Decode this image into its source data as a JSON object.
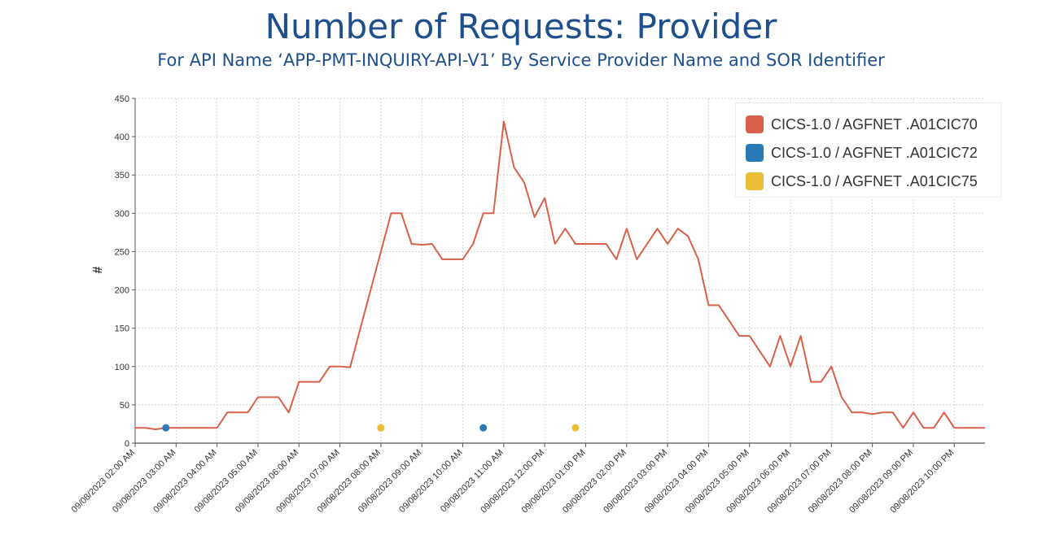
{
  "chart_data": {
    "type": "line",
    "title": "Number of Requests: Provider",
    "subtitle": "For API Name ‘APP-PMT-INQUIRY-API-V1’ By Service Provider Name and SOR Identifier",
    "xlabel": "",
    "ylabel": "#",
    "ylim": [
      0,
      450
    ],
    "yticks": [
      0,
      50,
      100,
      150,
      200,
      250,
      300,
      350,
      400,
      450
    ],
    "xlim": [
      "09/08/2023 02:00 AM",
      "09/08/2023 10:45 PM"
    ],
    "xticks": [
      "09/08/2023 02:00 AM",
      "09/08/2023 03:00 AM",
      "09/08/2023 04:00 AM",
      "09/08/2023 05:00 AM",
      "09/08/2023 06:00 AM",
      "09/08/2023 07:00 AM",
      "09/08/2023 08:00 AM",
      "09/08/2023 09:00 AM",
      "09/08/2023 10:00 AM",
      "09/08/2023 11:00 AM",
      "09/08/2023 12:00 PM",
      "09/08/2023 01:00 PM",
      "09/08/2023 02:00 PM",
      "09/08/2023 03:00 PM",
      "09/08/2023 04:00 PM",
      "09/08/2023 05:00 PM",
      "09/08/2023 06:00 PM",
      "09/08/2023 07:00 PM",
      "09/08/2023 08:00 PM",
      "09/08/2023 09:00 PM",
      "09/08/2023 10:00 PM"
    ],
    "grid": true,
    "legend_position": "top-right",
    "series": [
      {
        "name": "CICS-1.0 / AGFNET .A01CIC70",
        "color": "#d9604a",
        "style": "line",
        "x": [
          "02:00 AM",
          "02:15 AM",
          "02:30 AM",
          "02:45 AM",
          "03:00 AM",
          "03:15 AM",
          "03:30 AM",
          "03:45 AM",
          "04:00 AM",
          "04:15 AM",
          "04:30 AM",
          "04:45 AM",
          "05:00 AM",
          "05:15 AM",
          "05:30 AM",
          "05:45 AM",
          "06:00 AM",
          "06:15 AM",
          "06:30 AM",
          "06:45 AM",
          "07:00 AM",
          "07:15 AM",
          "07:30 AM",
          "07:45 AM",
          "08:00 AM",
          "08:15 AM",
          "08:30 AM",
          "08:45 AM",
          "09:00 AM",
          "09:15 AM",
          "09:30 AM",
          "09:45 AM",
          "10:00 AM",
          "10:15 AM",
          "10:30 AM",
          "10:45 AM",
          "11:00 AM",
          "11:15 AM",
          "11:30 AM",
          "11:45 AM",
          "12:00 PM",
          "12:15 PM",
          "12:30 PM",
          "12:45 PM",
          "01:00 PM",
          "01:15 PM",
          "01:30 PM",
          "01:45 PM",
          "02:00 PM",
          "02:15 PM",
          "02:30 PM",
          "02:45 PM",
          "03:00 PM",
          "03:15 PM",
          "03:30 PM",
          "03:45 PM",
          "04:00 PM",
          "04:15 PM",
          "04:30 PM",
          "04:45 PM",
          "05:00 PM",
          "05:15 PM",
          "05:30 PM",
          "05:45 PM",
          "06:00 PM",
          "06:15 PM",
          "06:30 PM",
          "06:45 PM",
          "07:00 PM",
          "07:15 PM",
          "07:30 PM",
          "07:45 PM",
          "08:00 PM",
          "08:15 PM",
          "08:30 PM",
          "08:45 PM",
          "09:00 PM",
          "09:15 PM",
          "09:30 PM",
          "09:45 PM",
          "10:00 PM",
          "10:15 PM",
          "10:30 PM",
          "10:45 PM"
        ],
        "values": [
          20,
          20,
          18,
          20,
          20,
          20,
          20,
          20,
          20,
          40,
          40,
          40,
          60,
          60,
          60,
          40,
          80,
          80,
          80,
          100,
          100,
          99,
          150,
          200,
          250,
          300,
          300,
          260,
          259,
          260,
          240,
          240,
          240,
          260,
          300,
          300,
          420,
          360,
          340,
          295,
          320,
          260,
          280,
          260,
          260,
          260,
          260,
          240,
          280,
          240,
          260,
          280,
          260,
          280,
          270,
          240,
          180,
          180,
          160,
          140,
          140,
          120,
          100,
          140,
          100,
          140,
          80,
          80,
          100,
          60,
          40,
          40,
          38,
          40,
          40,
          20,
          40,
          20,
          20,
          40,
          20,
          20,
          20,
          20
        ]
      },
      {
        "name": "CICS-1.0 / AGFNET .A01CIC72",
        "color": "#2a7ab8",
        "style": "points",
        "x": [
          "02:45 AM",
          "10:30 AM"
        ],
        "values": [
          20,
          20
        ]
      },
      {
        "name": "CICS-1.0 / AGFNET .A01CIC75",
        "color": "#eabd35",
        "style": "points",
        "x": [
          "08:00 AM",
          "12:45 PM"
        ],
        "values": [
          20,
          20
        ]
      }
    ]
  }
}
